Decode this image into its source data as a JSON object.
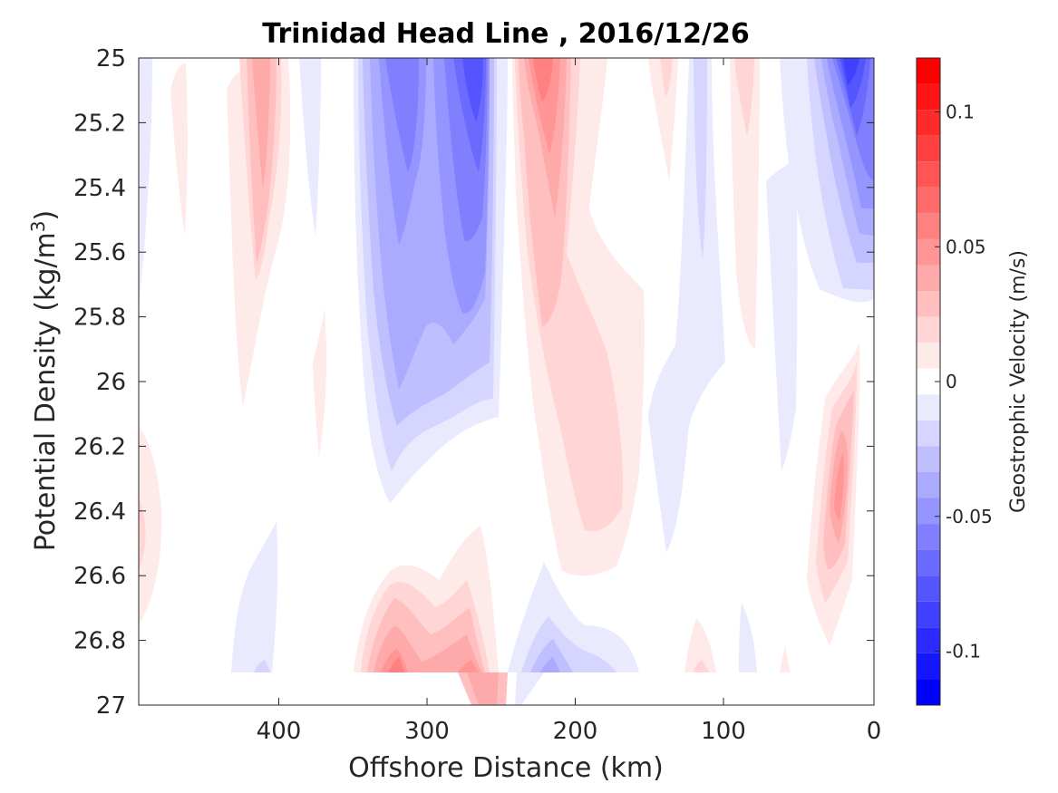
{
  "chart_data": {
    "type": "heatmap",
    "subtype": "filled-contour",
    "title": "Trinidad Head Line , 2016/12/26",
    "xlabel": "Offshore Distance (km)",
    "ylabel_main": "Potential Density (kg/m",
    "ylabel_sup": "3",
    "ylabel_close": ")",
    "xlim": [
      490,
      0
    ],
    "x_reversed": true,
    "ylim": [
      25,
      27
    ],
    "y_reversed": true,
    "xticks": [
      400,
      300,
      200,
      100,
      0
    ],
    "xtick_labels": [
      "400",
      "300",
      "200",
      "100",
      "0"
    ],
    "yticks": [
      25,
      25.2,
      25.4,
      25.6,
      25.8,
      26,
      26.2,
      26.4,
      26.6,
      26.8,
      27
    ],
    "ytick_labels": [
      "25",
      "25.2",
      "25.4",
      "25.6",
      "25.8",
      "26",
      "26.2",
      "26.4",
      "26.6",
      "26.8",
      "27"
    ],
    "data_bottom_density": 26.9,
    "colorbar": {
      "label": "Geostrophic Velocity (m/s)",
      "clim": [
        -0.12,
        0.12
      ],
      "step": 0.01,
      "ticks": [
        0.1,
        0.05,
        0,
        -0.05,
        -0.1
      ],
      "tick_labels": [
        "0.1",
        "0.05",
        "0",
        "-0.05",
        "-0.1"
      ],
      "levels_top_to_bottom": [
        "#ff0000",
        "#ff1515",
        "#ff2b2b",
        "#ff4040",
        "#ff5555",
        "#ff6a6a",
        "#ff8080",
        "#ff9595",
        "#ffaaaa",
        "#ffbfbf",
        "#ffd5d5",
        "#ffeaea",
        "#ffffff",
        "#eaeaff",
        "#d5d5ff",
        "#bfbfff",
        "#aaaaff",
        "#9595ff",
        "#8080ff",
        "#6a6aff",
        "#5555ff",
        "#4040ff",
        "#2b2bff",
        "#1515ff",
        "#0000ff"
      ]
    },
    "features": [
      {
        "name": "deep-blue-core-320",
        "x_km": [
          305,
          325
        ],
        "density": [
          25.0,
          25.5
        ],
        "velocity": -0.07
      },
      {
        "name": "deep-blue-core-265",
        "x_km": [
          255,
          280
        ],
        "density": [
          25.0,
          25.2
        ],
        "velocity": -0.1
      },
      {
        "name": "blue-jet-290",
        "x_km": [
          245,
          345
        ],
        "density": [
          25.0,
          26.35
        ],
        "velocity": -0.04
      },
      {
        "name": "red-core-220",
        "x_km": [
          205,
          235
        ],
        "density": [
          25.0,
          25.4
        ],
        "velocity": 0.07
      },
      {
        "name": "red-jet-200",
        "x_km": [
          160,
          240
        ],
        "density": [
          25.0,
          26.65
        ],
        "velocity": 0.03
      },
      {
        "name": "red-jet-410",
        "x_km": [
          390,
          435
        ],
        "density": [
          25.0,
          26.05
        ],
        "velocity": 0.04
      },
      {
        "name": "blue-nearshore-15",
        "x_km": [
          5,
          45
        ],
        "density": [
          25.0,
          25.7
        ],
        "velocity": -0.09
      },
      {
        "name": "red-nearshore-25",
        "x_km": [
          10,
          50
        ],
        "density": [
          25.95,
          26.85
        ],
        "velocity": 0.05
      },
      {
        "name": "red-bottom-305",
        "x_km": [
          240,
          380
        ],
        "density": [
          26.55,
          26.9
        ],
        "velocity": 0.05
      },
      {
        "name": "blue-bottom-215",
        "x_km": [
          160,
          240
        ],
        "density": [
          26.55,
          26.9
        ],
        "velocity": -0.03
      },
      {
        "name": "blue-bottom-395",
        "x_km": [
          380,
          430
        ],
        "density": [
          26.45,
          26.9
        ],
        "velocity": -0.015
      },
      {
        "name": "blue-slope-135",
        "x_km": [
          100,
          160
        ],
        "density": [
          25.0,
          26.5
        ],
        "velocity": -0.015
      },
      {
        "name": "red-slope-90",
        "x_km": [
          80,
          110
        ],
        "density": [
          25.0,
          25.9
        ],
        "velocity": 0.02
      },
      {
        "name": "red-offshore-480",
        "x_km": [
          470,
          490
        ],
        "density": [
          26.1,
          26.75
        ],
        "velocity": 0.015
      }
    ]
  }
}
